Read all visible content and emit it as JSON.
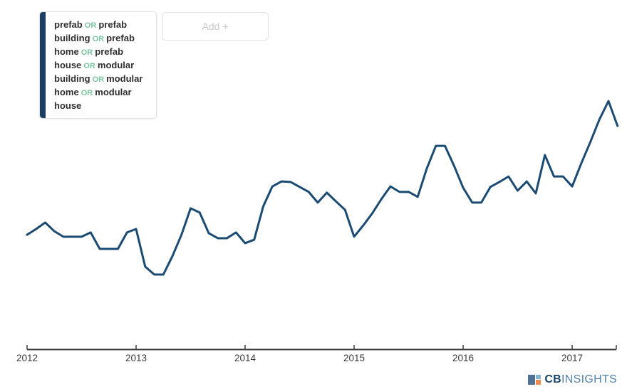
{
  "legend": {
    "or_label": "OR",
    "terms": [
      "prefab",
      "prefab building",
      "prefab home",
      "prefab house",
      "modular building",
      "modular home",
      "modular house"
    ],
    "bar_color": "#1d3d63",
    "or_color": "#7cc5a0"
  },
  "toolbar": {
    "add_label": "Add +"
  },
  "logo": {
    "cb": "CB",
    "insights": "INSIGHTS",
    "icon_colors": {
      "left": "#4e7194",
      "top_right": "#86b4d3",
      "bottom_right": "#f18a50"
    }
  },
  "chart_data": {
    "type": "line",
    "title": "",
    "xlabel": "",
    "ylabel": "",
    "x_interval": "monthly",
    "x_start": "2012-01",
    "x_end": "2017-06",
    "x_tick_labels": [
      "2012",
      "2013",
      "2014",
      "2015",
      "2016",
      "2017"
    ],
    "ylim": [
      0,
      100
    ],
    "grid": false,
    "y_axis_visible": false,
    "legend_position": "top-left",
    "series": [
      {
        "name": "prefab OR prefab building OR prefab home OR prefab house OR modular building OR modular home OR modular house",
        "color": "#1b4a72",
        "values": [
          45.7,
          48,
          50.6,
          47.1,
          44.9,
          44.9,
          44.9,
          46.6,
          40,
          40,
          40,
          46.6,
          48,
          32.9,
          29.7,
          29.7,
          37.1,
          45.7,
          56.3,
          54.6,
          46.3,
          44.3,
          44.3,
          46.6,
          42.3,
          43.7,
          57.1,
          65.1,
          67.1,
          66.9,
          64.9,
          62.9,
          58.6,
          62.6,
          59.1,
          55.7,
          44.9,
          49.4,
          54.3,
          60,
          65.1,
          62.9,
          62.9,
          60.9,
          72.3,
          81.4,
          81.4,
          73.4,
          64.6,
          58.6,
          58.6,
          64.9,
          66.9,
          69.1,
          63.4,
          67.1,
          62.3,
          77.7,
          69.1,
          69.1,
          65.1,
          74.3,
          82.9,
          92,
          99.4,
          89.4
        ]
      }
    ],
    "axis_color": "#3d3d3d",
    "tick_label_color": "#3a3a3a"
  }
}
